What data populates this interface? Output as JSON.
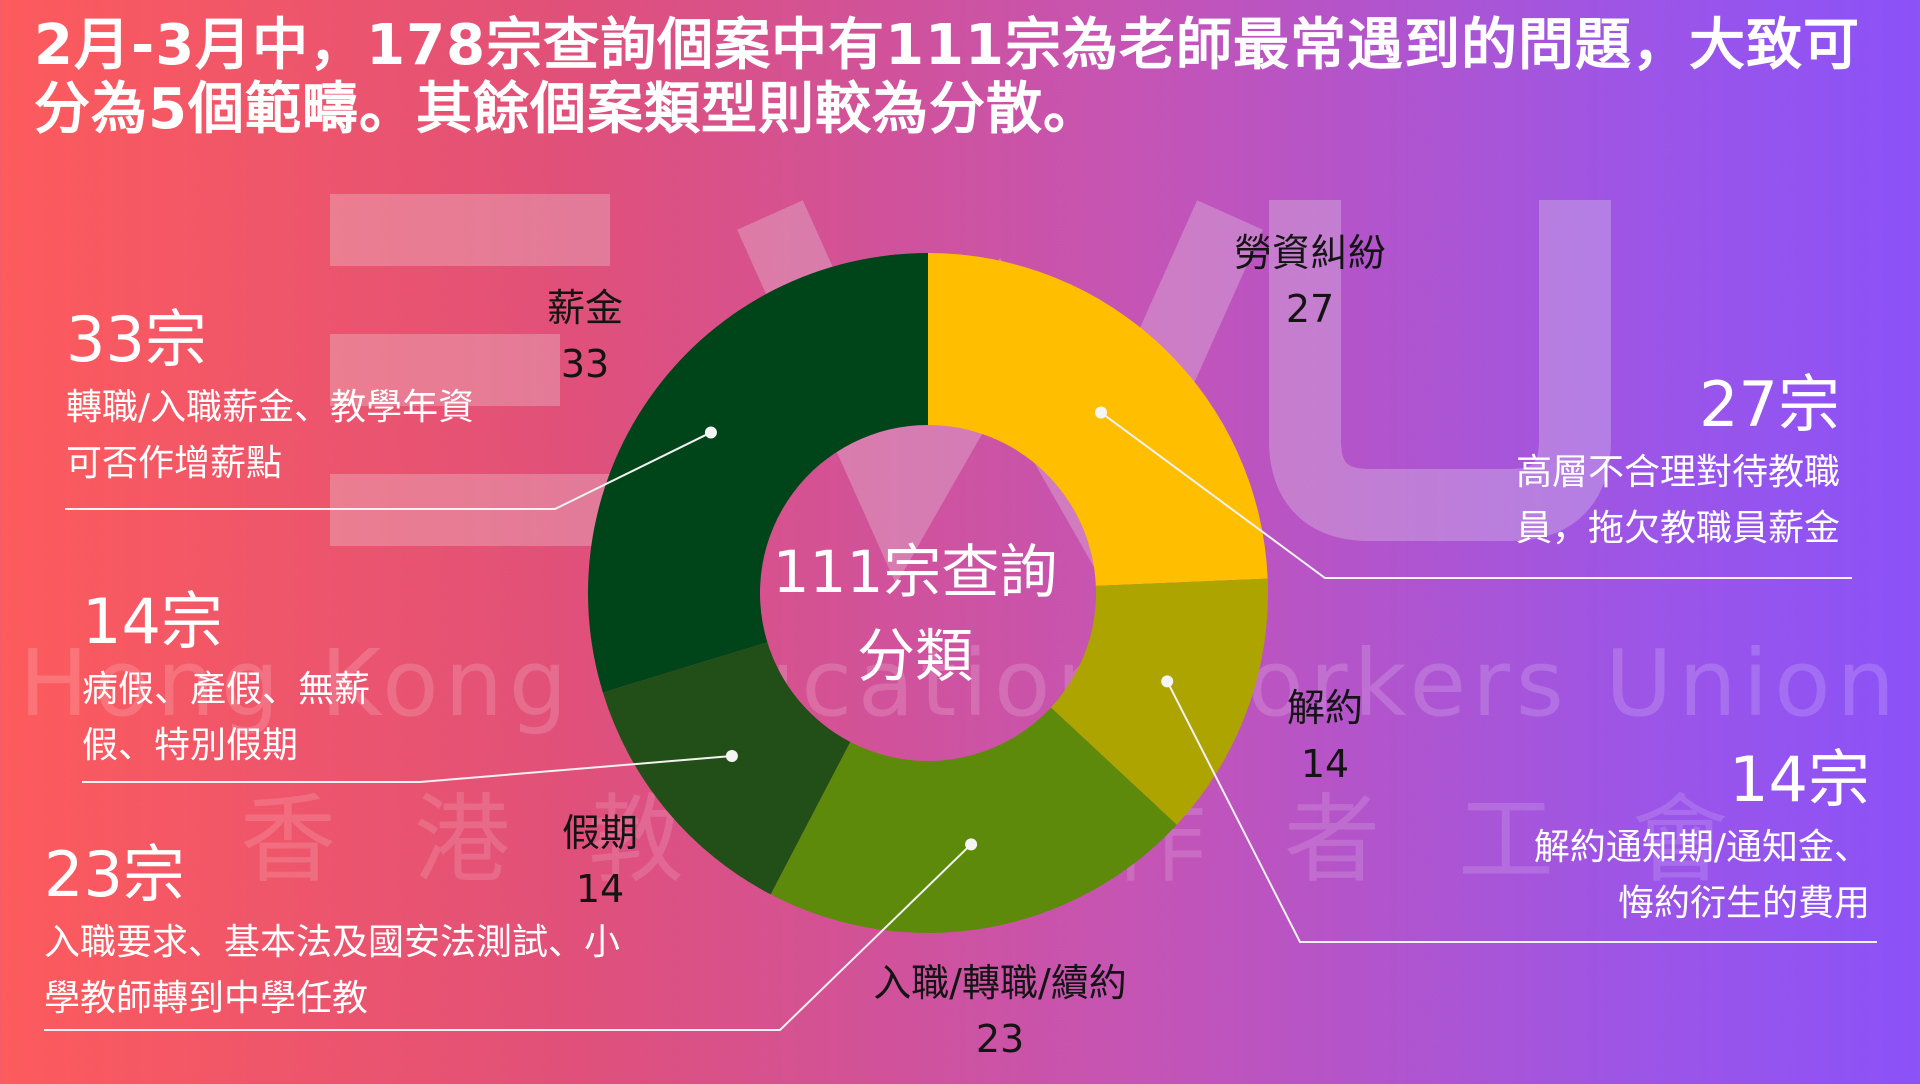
{
  "headline": "2月-3月中，178宗查詢個案中有111宗為老師最常遇到的問題，大致可分為5個範疇。其餘個案類型則較為分散。",
  "watermark": {
    "en": "Hong Kong Education Workers Union",
    "zh": "香港教育工作者工會"
  },
  "chart_data": {
    "type": "pie",
    "variant": "donut",
    "center_label": "111宗查詢分類",
    "total": 111,
    "slices": [
      {
        "label": "勞資糾紛",
        "value": 27,
        "color": "#ffbe00"
      },
      {
        "label": "解約",
        "value": 14,
        "color": "#aea400"
      },
      {
        "label": "入職/轉職/續約",
        "value": 23,
        "color": "#5e8a0c"
      },
      {
        "label": "假期",
        "value": 14,
        "color": "#224e17"
      },
      {
        "label": "薪金",
        "value": 33,
        "color": "#00451a"
      }
    ]
  },
  "callouts": [
    {
      "count": "33宗",
      "desc1": "轉職/入職薪金、教學年資",
      "desc2": "可否作增薪點"
    },
    {
      "count": "14宗",
      "desc1": "病假、產假、無薪",
      "desc2": "假、特別假期"
    },
    {
      "count": "23宗",
      "desc1": "入職要求、基本法及國安法測試、小",
      "desc2": "學教師轉到中學任教"
    },
    {
      "count": "27宗",
      "desc1": "高層不合理對待教職",
      "desc2": "員，拖欠教職員薪金"
    },
    {
      "count": "14宗",
      "desc1": "解約通知期/通知金、",
      "desc2": "悔約衍生的費用"
    }
  ]
}
